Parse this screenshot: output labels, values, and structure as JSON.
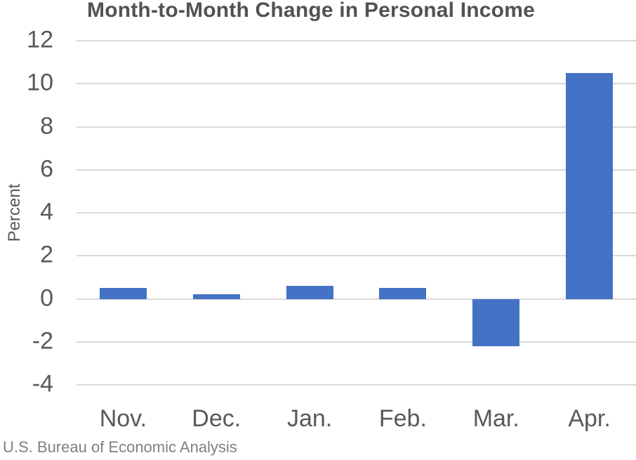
{
  "title": "Month-to-Month Change in Personal Income",
  "source": "U.S. Bureau of Economic Analysis",
  "chart_data": {
    "type": "bar",
    "categories": [
      "Nov.",
      "Dec.",
      "Jan.",
      "Feb.",
      "Mar.",
      "Apr."
    ],
    "values": [
      0.5,
      0.2,
      0.6,
      0.5,
      -2.2,
      10.5
    ],
    "title": "Month-to-Month Change in Personal Income",
    "xlabel": "",
    "ylabel": "Percent",
    "ylim": [
      -4,
      12
    ],
    "yticks": [
      12,
      10,
      8,
      6,
      4,
      2,
      0,
      -2,
      -4
    ],
    "grid": true,
    "legend": false,
    "bar_color": "#4472C4",
    "gridline_color": "#d9d9d9",
    "axis_label_color": "#595959",
    "title_color": "#525252",
    "source_color": "#808080"
  }
}
